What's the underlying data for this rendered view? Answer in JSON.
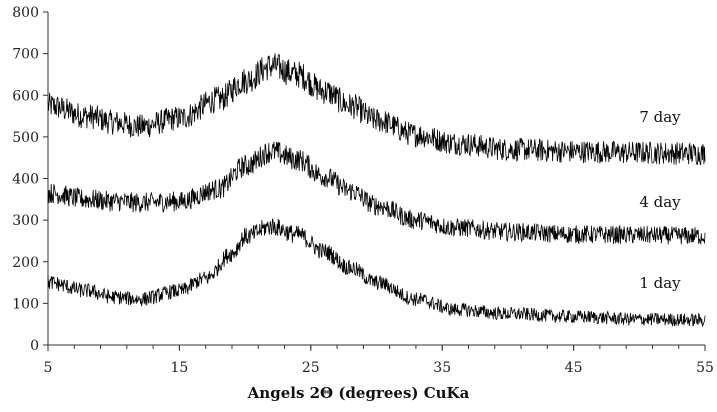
{
  "chart_data": {
    "type": "line",
    "xlabel": "Angels 2Θ (degrees) CuKa",
    "ylabel": "",
    "title": "",
    "xlim": [
      5,
      55
    ],
    "ylim": [
      0,
      800
    ],
    "x_ticks": [
      "5",
      "15",
      "25",
      "35",
      "45",
      "55"
    ],
    "y_ticks": [
      "0",
      "100",
      "200",
      "300",
      "400",
      "500",
      "600",
      "700",
      "800"
    ],
    "grid": false,
    "legend": "none",
    "line_color": "#000000",
    "series": [
      {
        "name": "7 day",
        "x": [
          5,
          8,
          10,
          12,
          15,
          18,
          20,
          22,
          24,
          26,
          28,
          30,
          33,
          36,
          40,
          45,
          50,
          55
        ],
        "y": [
          575,
          550,
          535,
          525,
          545,
          590,
          635,
          670,
          650,
          610,
          575,
          540,
          505,
          485,
          470,
          465,
          462,
          460
        ]
      },
      {
        "name": "4 day",
        "x": [
          5,
          8,
          10,
          12,
          15,
          18,
          20,
          22,
          24,
          26,
          28,
          30,
          33,
          36,
          40,
          45,
          50,
          55
        ],
        "y": [
          365,
          350,
          345,
          342,
          345,
          375,
          430,
          465,
          445,
          405,
          370,
          335,
          300,
          282,
          272,
          266,
          264,
          262
        ]
      },
      {
        "name": "1 day",
        "x": [
          5,
          8,
          10,
          12,
          15,
          17,
          19,
          20,
          22,
          24,
          26,
          28,
          30,
          33,
          36,
          40,
          45,
          50,
          55
        ],
        "y": [
          150,
          130,
          115,
          110,
          130,
          160,
          220,
          260,
          285,
          265,
          225,
          185,
          150,
          110,
          85,
          75,
          68,
          62,
          60
        ]
      }
    ]
  }
}
